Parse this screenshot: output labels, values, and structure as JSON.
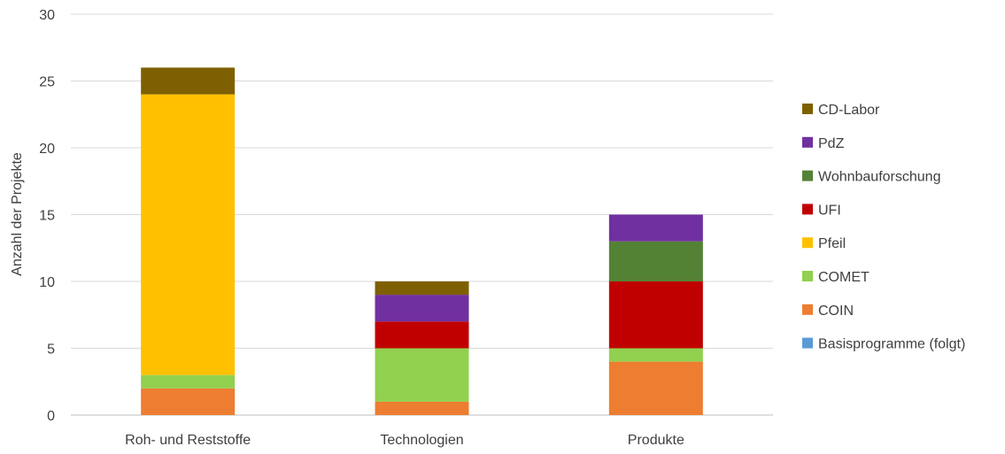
{
  "chart_data": {
    "type": "bar",
    "stacked": true,
    "categories": [
      "Roh- und Reststoffe",
      "Technologien",
      "Produkte"
    ],
    "ylabel": "Anzahl der Projekte",
    "xlabel": "",
    "title": "",
    "ylim": [
      0,
      30
    ],
    "yticks": [
      0,
      5,
      10,
      15,
      20,
      25,
      30
    ],
    "grid": true,
    "legend_position": "right",
    "series": [
      {
        "name": "Basisprogramme (folgt)",
        "color": "#5B9BD5",
        "values": [
          0,
          0,
          0
        ]
      },
      {
        "name": "COIN",
        "color": "#ED7D31",
        "values": [
          2,
          1,
          4
        ]
      },
      {
        "name": "COMET",
        "color": "#92D050",
        "values": [
          1,
          4,
          1
        ]
      },
      {
        "name": "Pfeil",
        "color": "#FFC000",
        "values": [
          21,
          0,
          0
        ]
      },
      {
        "name": "UFI",
        "color": "#C00000",
        "values": [
          0,
          2,
          5
        ]
      },
      {
        "name": "Wohnbauforschung",
        "color": "#548235",
        "values": [
          0,
          0,
          3
        ]
      },
      {
        "name": "PdZ",
        "color": "#7030A0",
        "values": [
          0,
          2,
          2
        ]
      },
      {
        "name": "CD-Labor",
        "color": "#7F6000",
        "values": [
          2,
          1,
          0
        ]
      }
    ]
  }
}
